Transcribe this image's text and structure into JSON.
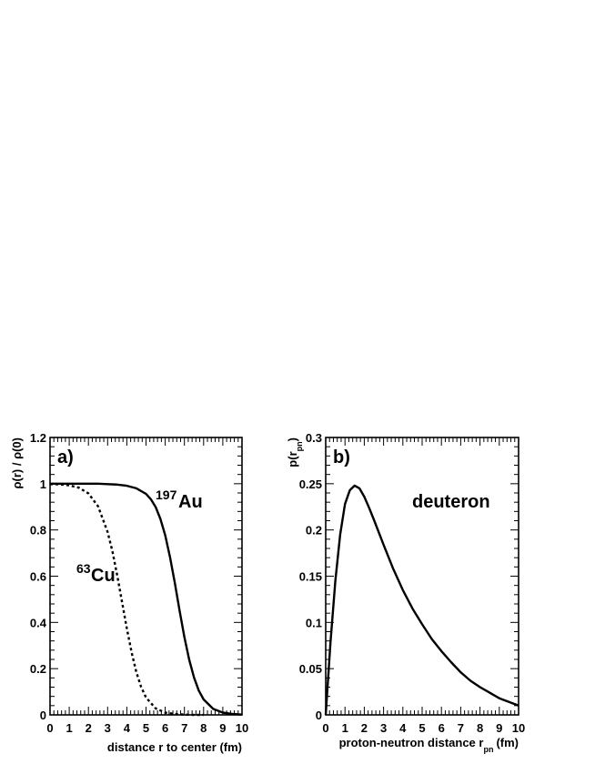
{
  "chart_data": [
    {
      "type": "line",
      "panel_label": "a)",
      "xlabel": "distance r to center (fm)",
      "ylabel": "ρ(r) / ρ(0)",
      "xlim": [
        0,
        10
      ],
      "ylim": [
        0,
        1.2
      ],
      "x_ticks": [
        "0",
        "1",
        "2",
        "3",
        "4",
        "5",
        "6",
        "7",
        "8",
        "9",
        "10"
      ],
      "y_ticks": [
        "0",
        "0.2",
        "0.4",
        "0.6",
        "0.8",
        "1",
        "1.2"
      ],
      "grid": false,
      "series": [
        {
          "name": "197Au",
          "label_sup": "197",
          "label_main": "Au",
          "style": "solid",
          "x": [
            0,
            0.5,
            1,
            1.5,
            2,
            2.5,
            3,
            3.5,
            4,
            4.5,
            5,
            5.25,
            5.5,
            5.75,
            6,
            6.25,
            6.5,
            6.75,
            7,
            7.25,
            7.5,
            7.75,
            8,
            8.5,
            9,
            9.5,
            10
          ],
          "y": [
            1.0,
            1.0,
            1.0,
            1.0,
            1.0,
            1.0,
            0.998,
            0.996,
            0.991,
            0.98,
            0.956,
            0.933,
            0.899,
            0.848,
            0.777,
            0.682,
            0.57,
            0.451,
            0.336,
            0.238,
            0.161,
            0.105,
            0.067,
            0.026,
            0.01,
            0.004,
            0.001
          ]
        },
        {
          "name": "63Cu",
          "label_sup": "63",
          "label_main": "Cu",
          "style": "dotted",
          "x": [
            0,
            0.5,
            1,
            1.5,
            2,
            2.5,
            3,
            3.25,
            3.5,
            3.75,
            4,
            4.25,
            4.5,
            4.75,
            5,
            5.5,
            6,
            6.5,
            7,
            7.5,
            8
          ],
          "y": [
            0.998,
            0.997,
            0.993,
            0.983,
            0.958,
            0.902,
            0.791,
            0.707,
            0.604,
            0.489,
            0.374,
            0.27,
            0.184,
            0.12,
            0.075,
            0.028,
            0.01,
            0.004,
            0.001,
            0.0,
            0.0
          ]
        }
      ]
    },
    {
      "type": "line",
      "panel_label": "b)",
      "xlabel": "proton-neutron distance r",
      "xlabel_sub": "pn",
      "xlabel_unit": "(fm)",
      "ylabel": "p(r",
      "ylabel_sub": "pn",
      "ylabel_end": ")",
      "xlim": [
        0,
        10
      ],
      "ylim": [
        0,
        0.3
      ],
      "x_ticks": [
        "0",
        "1",
        "2",
        "3",
        "4",
        "5",
        "6",
        "7",
        "8",
        "9",
        "10"
      ],
      "y_ticks": [
        "0",
        "0.05",
        "0.1",
        "0.15",
        "0.2",
        "0.25",
        "0.3"
      ],
      "grid": false,
      "series": [
        {
          "name": "deuteron",
          "style": "solid",
          "x": [
            0,
            0.25,
            0.5,
            0.75,
            1,
            1.25,
            1.5,
            1.75,
            2,
            2.25,
            2.5,
            3,
            3.5,
            4,
            4.5,
            5,
            5.5,
            6,
            6.5,
            7,
            7.5,
            8,
            8.5,
            9,
            9.5,
            10
          ],
          "y": [
            0.0,
            0.079,
            0.145,
            0.195,
            0.228,
            0.243,
            0.248,
            0.245,
            0.236,
            0.224,
            0.211,
            0.184,
            0.158,
            0.135,
            0.115,
            0.098,
            0.082,
            0.069,
            0.057,
            0.046,
            0.037,
            0.03,
            0.024,
            0.018,
            0.014,
            0.01
          ]
        }
      ]
    }
  ]
}
